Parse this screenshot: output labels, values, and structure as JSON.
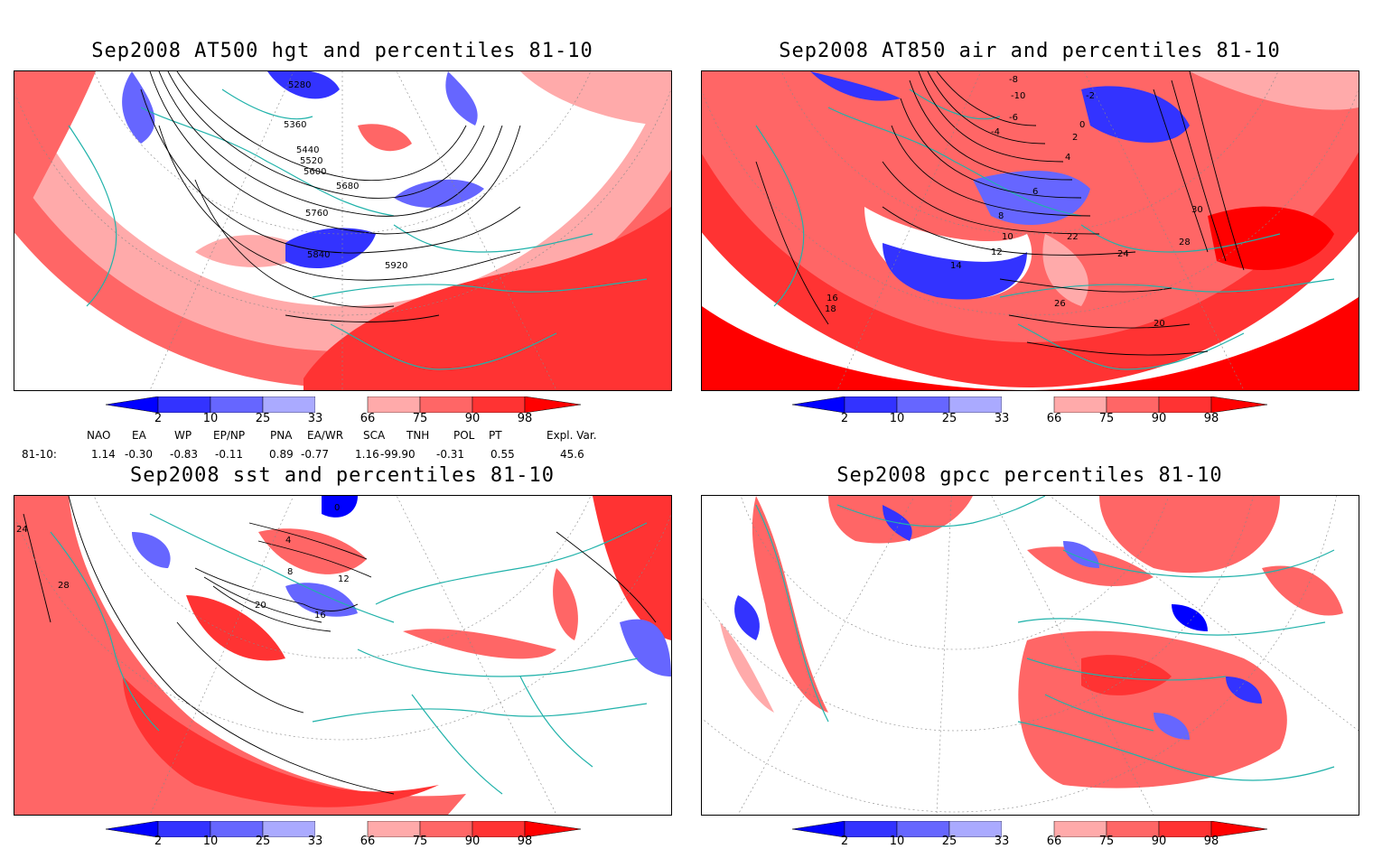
{
  "panels": [
    {
      "id": "p1",
      "title": "Sep2008 AT500 hgt and percentiles 81-10",
      "contour_labels": [
        "5280",
        "5360",
        "5440",
        "5520",
        "5600",
        "5680",
        "5760",
        "5840",
        "5920"
      ]
    },
    {
      "id": "p2",
      "title": "Sep2008 AT850 air and percentiles 81-10",
      "contour_labels": [
        "-8",
        "-10",
        "-6",
        "-4",
        "-2",
        "0",
        "2",
        "4",
        "6",
        "8",
        "10",
        "12",
        "14",
        "16",
        "18",
        "20",
        "22",
        "24",
        "26",
        "28",
        "30"
      ]
    },
    {
      "id": "p3",
      "title": "Sep2008 sst and percentiles 81-10",
      "contour_labels": [
        "24",
        "28",
        "20",
        "16",
        "12",
        "8",
        "4",
        "0"
      ]
    },
    {
      "id": "p4",
      "title": "Sep2008 gpcc percentiles 81-10",
      "contour_labels": []
    }
  ],
  "colorbar": {
    "ticks": [
      "2",
      "10",
      "25",
      "33",
      "66",
      "75",
      "90",
      "98"
    ],
    "colors": {
      "below_2": "#0000ff",
      "b2_10": "#3333ff",
      "b10_25": "#6666ff",
      "b25_33": "#aaaaff",
      "b33_66": "#ffffff",
      "b66_75": "#ffaaaa",
      "b75_90": "#ff6666",
      "b90_98": "#ff3333",
      "above_98": "#ff0000"
    }
  },
  "indices": {
    "row_label": "81-10:",
    "headers": [
      "NAO",
      "EA",
      "WP",
      "EP/NP",
      "PNA",
      "EA/WR",
      "SCA",
      "TNH",
      "POL",
      "PT",
      "Expl. Var."
    ],
    "values": [
      "1.14",
      "-0.30",
      "-0.83",
      "-0.11",
      "0.89",
      "-0.77",
      "1.16",
      "-99.90",
      "-0.31",
      "0.55",
      "45.6"
    ]
  },
  "map_colors": {
    "coast": "#20b2aa",
    "contour": "#000000",
    "grid": "#888888"
  }
}
